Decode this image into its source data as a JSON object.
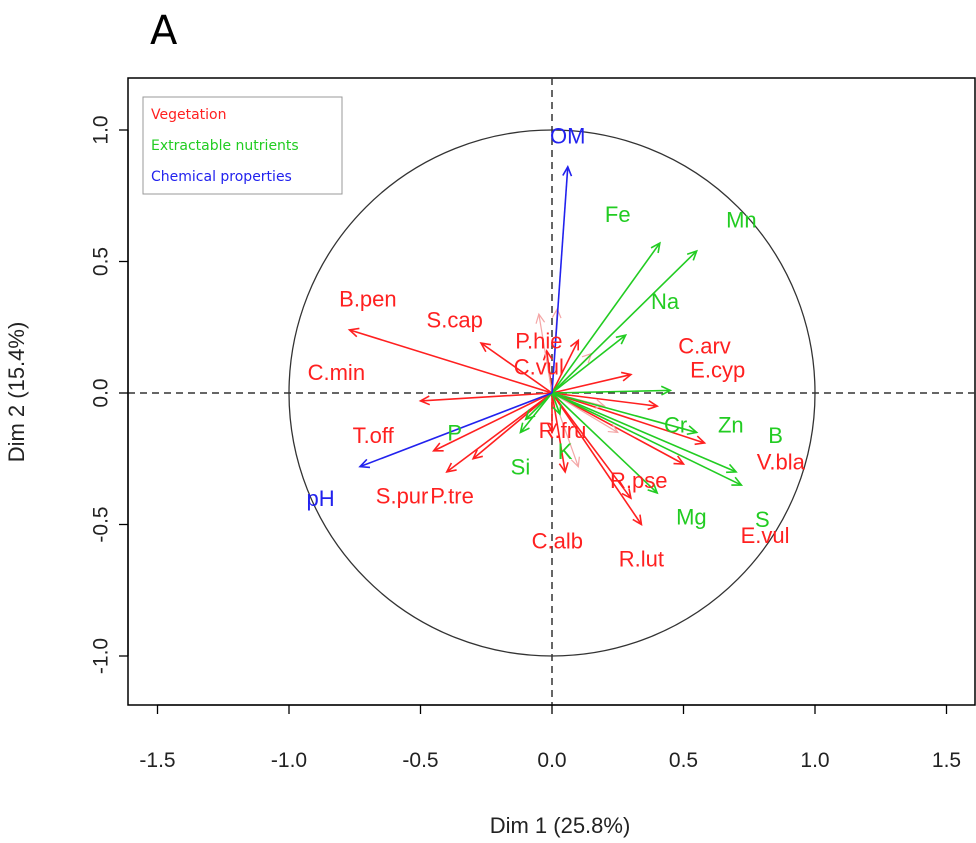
{
  "panel_label": "A",
  "chart_data": {
    "type": "scatter",
    "subtype": "pca-correlation-circle",
    "title": "",
    "xlabel": "Dim 1 (25.8%)",
    "ylabel": "Dim 2 (15.4%)",
    "xlim": [
      -1.6,
      1.55
    ],
    "ylim": [
      -1.2,
      1.2
    ],
    "xticks": [
      -1.5,
      -1.0,
      -0.5,
      0.0,
      0.5,
      1.0,
      1.5
    ],
    "xtick_labels": [
      "-1.5",
      "-1.0",
      "-0.5",
      "0.0",
      "0.5",
      "1.0",
      "1.5"
    ],
    "yticks": [
      -1.0,
      -0.5,
      0.0,
      0.5,
      1.0
    ],
    "ytick_labels": [
      "-1.0",
      "-0.5",
      "0.0",
      "0.5",
      "1.0"
    ],
    "grid": false,
    "unit_circle": true,
    "reference_lines": [
      0,
      0
    ],
    "legend": {
      "position": "top-left",
      "entries": [
        {
          "name": "Vegetation",
          "color": "#ff2020"
        },
        {
          "name": "Extractable nutrients",
          "color": "#22cc22"
        },
        {
          "name": "Chemical properties",
          "color": "#2222ee"
        }
      ]
    },
    "colors": {
      "vegetation": "#ff2020",
      "vegetation_faint": "#f4a6a6",
      "nutrients": "#22cc22",
      "chemical": "#2222ee"
    },
    "series": [
      {
        "name": "Chemical properties",
        "group": "chemical",
        "arrows": [
          {
            "x": 0.06,
            "y": 0.86,
            "label": "OM",
            "lx": 0.06,
            "ly": 0.98
          },
          {
            "x": -0.73,
            "y": -0.28,
            "label": "pH",
            "lx": -0.88,
            "ly": -0.4
          }
        ]
      },
      {
        "name": "Extractable nutrients",
        "group": "nutrients",
        "arrows": [
          {
            "x": 0.41,
            "y": 0.57,
            "label": "Fe",
            "lx": 0.25,
            "ly": 0.68
          },
          {
            "x": 0.55,
            "y": 0.54,
            "label": "Mn",
            "lx": 0.72,
            "ly": 0.66
          },
          {
            "x": 0.28,
            "y": 0.22,
            "label": "Na",
            "lx": 0.43,
            "ly": 0.35
          },
          {
            "x": -0.12,
            "y": -0.15,
            "label": "P",
            "lx": -0.37,
            "ly": -0.15
          },
          {
            "x": 0.45,
            "y": 0.01,
            "label": "Cr",
            "lx": 0.47,
            "ly": -0.12
          },
          {
            "x": 0.55,
            "y": -0.15,
            "label": "Zn",
            "lx": 0.68,
            "ly": -0.12
          },
          {
            "x": 0.7,
            "y": -0.3,
            "label": "B",
            "lx": 0.85,
            "ly": -0.16
          },
          {
            "x": 0.72,
            "y": -0.35,
            "label": "S",
            "lx": 0.8,
            "ly": -0.48
          },
          {
            "x": 0.4,
            "y": -0.38,
            "label": "Mg",
            "lx": 0.53,
            "ly": -0.47
          },
          {
            "x": -0.1,
            "y": -0.1,
            "label": "Si",
            "lx": -0.12,
            "ly": -0.28
          },
          {
            "x": 0.03,
            "y": -0.08,
            "label": "K",
            "lx": 0.05,
            "ly": -0.22
          }
        ]
      },
      {
        "name": "Vegetation",
        "group": "vegetation",
        "arrows": [
          {
            "x": -0.77,
            "y": 0.24,
            "label": "B.pen",
            "lx": -0.7,
            "ly": 0.36
          },
          {
            "x": -0.5,
            "y": -0.03,
            "label": "C.min",
            "lx": -0.82,
            "ly": 0.08
          },
          {
            "x": -0.45,
            "y": -0.22,
            "label": "T.off",
            "lx": -0.68,
            "ly": -0.16
          },
          {
            "x": 0.3,
            "y": 0.07,
            "label": "C.arv",
            "lx": 0.58,
            "ly": 0.18
          },
          {
            "x": 0.4,
            "y": -0.05,
            "label": "E.cyp",
            "lx": 0.63,
            "ly": 0.09
          },
          {
            "x": 0.58,
            "y": -0.19,
            "label": "V.bla",
            "lx": 0.87,
            "ly": -0.26
          },
          {
            "x": 0.5,
            "y": -0.27,
            "label": "E.vul",
            "lx": 0.81,
            "ly": -0.54
          },
          {
            "x": 0.3,
            "y": -0.4,
            "label": "R.pse",
            "lx": 0.33,
            "ly": -0.33
          },
          {
            "x": 0.34,
            "y": -0.5,
            "label": "R.lut",
            "lx": 0.34,
            "ly": -0.63
          },
          {
            "x": 0.0,
            "y": -0.15,
            "label": "R.fru",
            "lx": 0.04,
            "ly": -0.14
          },
          {
            "x": 0.05,
            "y": -0.3,
            "label": "C.alb",
            "lx": 0.02,
            "ly": -0.56
          },
          {
            "x": -0.02,
            "y": 0.16,
            "label": "C.vul",
            "lx": -0.05,
            "ly": 0.1
          },
          {
            "x": 0.1,
            "y": 0.2,
            "label": "P.hie",
            "lx": -0.05,
            "ly": 0.2
          },
          {
            "x": -0.27,
            "y": 0.19,
            "label": "S.cap",
            "lx": -0.37,
            "ly": 0.28
          },
          {
            "x": -0.4,
            "y": -0.3,
            "label": "S.pur",
            "lx": -0.57,
            "ly": -0.39
          },
          {
            "x": -0.3,
            "y": -0.25,
            "label": "P.tre",
            "lx": -0.38,
            "ly": -0.39
          },
          {
            "x": 0.2,
            "y": -0.05,
            "label": ""
          },
          {
            "x": 0.15,
            "y": 0.15,
            "label": ""
          },
          {
            "x": 0.25,
            "y": -0.15,
            "label": ""
          },
          {
            "x": -0.05,
            "y": 0.3,
            "label": ""
          },
          {
            "x": 0.02,
            "y": 0.32,
            "label": ""
          },
          {
            "x": 0.1,
            "y": -0.28,
            "label": ""
          }
        ]
      }
    ]
  }
}
